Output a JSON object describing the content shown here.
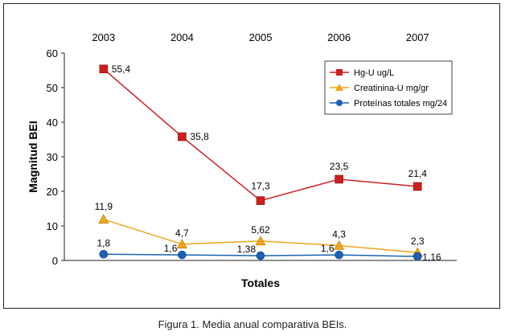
{
  "caption": "Figura 1. Media anual comparativa BEIs.",
  "chart_data": {
    "type": "line",
    "categories": [
      "2003",
      "2004",
      "2005",
      "2006",
      "2007"
    ],
    "xlabel": "Totales",
    "ylabel": "Magnitud BEI",
    "ylim": [
      0,
      60
    ],
    "yticks": [
      "0",
      "10",
      "20",
      "30",
      "40",
      "50",
      "60"
    ],
    "legend_position": "top-right",
    "grid": false,
    "series": [
      {
        "name": "Hg-U ug/L",
        "values": [
          55.4,
          35.8,
          17.3,
          23.5,
          21.4
        ],
        "labels": [
          "55,4",
          "35,8",
          "17,3",
          "23,5",
          "21,4"
        ],
        "color": "#cc1f1f",
        "marker": "square"
      },
      {
        "name": "Creatinina-U mg/gr",
        "values": [
          11.9,
          4.7,
          5.62,
          4.3,
          2.3
        ],
        "labels": [
          "11,9",
          "4,7",
          "5,62",
          "4,3",
          "2,3"
        ],
        "color": "#f0a419",
        "marker": "triangle"
      },
      {
        "name": "Proteínas totales mg/24",
        "values": [
          1.8,
          1.6,
          1.38,
          1.6,
          1.16
        ],
        "labels": [
          "1,8",
          "1,6",
          "1,38",
          "1,6",
          "1,16"
        ],
        "color": "#1a62b3",
        "marker": "circle"
      }
    ]
  }
}
